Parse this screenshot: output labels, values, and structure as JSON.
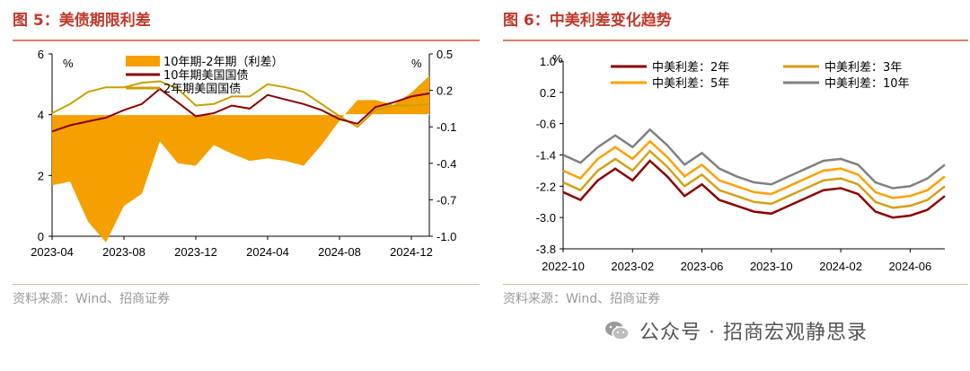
{
  "fig5": {
    "title": "图 5：美债期限利差",
    "source": "资料来源：Wind、招商证券",
    "chart_data": {
      "type": "line",
      "left_unit": "%",
      "right_unit": "%",
      "ylim_left": [
        0,
        6
      ],
      "yticks_left": [
        "0",
        "2",
        "4",
        "6"
      ],
      "ylim_right": [
        -1.0,
        0.5
      ],
      "yticks_right": [
        "-1.0",
        "-0.7",
        "-0.4",
        "-0.1",
        "0.2",
        "0.5"
      ],
      "xticks": [
        "2023-04",
        "2023-08",
        "2023-12",
        "2024-04",
        "2024-08",
        "2024-12"
      ],
      "legend": [
        "10年期-2年期（利差）",
        "10年期美国国债",
        "2年期美国国债"
      ],
      "series": [
        {
          "name": "10年期-2年期（利差）",
          "axis": "right",
          "color": "#f5a000",
          "points": [
            [
              "2023-04",
              -0.58
            ],
            [
              "2023-05",
              -0.55
            ],
            [
              "2023-06",
              -0.88
            ],
            [
              "2023-07",
              -1.05
            ],
            [
              "2023-08",
              -0.75
            ],
            [
              "2023-09",
              -0.65
            ],
            [
              "2023-10",
              -0.22
            ],
            [
              "2023-11",
              -0.4
            ],
            [
              "2023-12",
              -0.42
            ],
            [
              "2024-01",
              -0.25
            ],
            [
              "2024-02",
              -0.32
            ],
            [
              "2024-03",
              -0.38
            ],
            [
              "2024-04",
              -0.36
            ],
            [
              "2024-05",
              -0.38
            ],
            [
              "2024-06",
              -0.42
            ],
            [
              "2024-07",
              -0.25
            ],
            [
              "2024-08",
              -0.05
            ],
            [
              "2024-09",
              0.12
            ],
            [
              "2024-10",
              0.12
            ],
            [
              "2024-11",
              0.08
            ],
            [
              "2024-12",
              0.18
            ],
            [
              "2025-01",
              0.32
            ]
          ]
        },
        {
          "name": "10年期美国国债",
          "axis": "left",
          "color": "#8b0000",
          "points": [
            [
              "2023-04",
              3.45
            ],
            [
              "2023-05",
              3.65
            ],
            [
              "2023-06",
              3.78
            ],
            [
              "2023-07",
              3.9
            ],
            [
              "2023-08",
              4.15
            ],
            [
              "2023-09",
              4.35
            ],
            [
              "2023-10",
              4.85
            ],
            [
              "2023-11",
              4.4
            ],
            [
              "2023-12",
              3.95
            ],
            [
              "2024-01",
              4.05
            ],
            [
              "2024-02",
              4.3
            ],
            [
              "2024-03",
              4.2
            ],
            [
              "2024-04",
              4.65
            ],
            [
              "2024-05",
              4.5
            ],
            [
              "2024-06",
              4.35
            ],
            [
              "2024-07",
              4.15
            ],
            [
              "2024-08",
              3.85
            ],
            [
              "2024-09",
              3.7
            ],
            [
              "2024-10",
              4.25
            ],
            [
              "2024-11",
              4.4
            ],
            [
              "2024-12",
              4.6
            ],
            [
              "2025-01",
              4.7
            ]
          ]
        },
        {
          "name": "2年期美国国债",
          "axis": "left",
          "color": "#c8a000",
          "points": [
            [
              "2023-04",
              4.05
            ],
            [
              "2023-05",
              4.35
            ],
            [
              "2023-06",
              4.75
            ],
            [
              "2023-07",
              4.9
            ],
            [
              "2023-08",
              4.9
            ],
            [
              "2023-09",
              5.05
            ],
            [
              "2023-10",
              5.1
            ],
            [
              "2023-11",
              4.85
            ],
            [
              "2023-12",
              4.3
            ],
            [
              "2024-01",
              4.35
            ],
            [
              "2024-02",
              4.6
            ],
            [
              "2024-03",
              4.6
            ],
            [
              "2024-04",
              5.0
            ],
            [
              "2024-05",
              4.9
            ],
            [
              "2024-06",
              4.75
            ],
            [
              "2024-07",
              4.35
            ],
            [
              "2024-08",
              3.95
            ],
            [
              "2024-09",
              3.6
            ],
            [
              "2024-10",
              4.15
            ],
            [
              "2024-11",
              4.3
            ],
            [
              "2024-12",
              4.3
            ],
            [
              "2025-01",
              4.35
            ]
          ]
        }
      ]
    }
  },
  "fig6": {
    "title": "图 6：中美利差变化趋势",
    "source": "资料来源：Wind、招商证券",
    "chart_data": {
      "type": "line",
      "unit": "%",
      "ylim": [
        -3.8,
        1.0
      ],
      "yticks": [
        "1.0",
        "0.2",
        "-0.6",
        "-1.4",
        "-2.2",
        "-3.0",
        "-3.8"
      ],
      "xticks": [
        "2022-10",
        "2023-02",
        "2023-06",
        "2023-10",
        "2024-02",
        "2024-06"
      ],
      "legend": [
        "中美利差：2年",
        "中美利差：3年",
        "中美利差：5年",
        "中美利差：10年"
      ],
      "series": [
        {
          "name": "中美利差：2年",
          "color": "#8b0000",
          "points": [
            [
              "2022-10",
              -2.35
            ],
            [
              "2022-11",
              -2.55
            ],
            [
              "2022-12",
              -2.05
            ],
            [
              "2023-01",
              -1.75
            ],
            [
              "2023-02",
              -2.05
            ],
            [
              "2023-03",
              -1.55
            ],
            [
              "2023-04",
              -1.95
            ],
            [
              "2023-05",
              -2.45
            ],
            [
              "2023-06",
              -2.15
            ],
            [
              "2023-07",
              -2.55
            ],
            [
              "2023-08",
              -2.7
            ],
            [
              "2023-09",
              -2.85
            ],
            [
              "2023-10",
              -2.9
            ],
            [
              "2023-11",
              -2.7
            ],
            [
              "2023-12",
              -2.5
            ],
            [
              "2024-01",
              -2.3
            ],
            [
              "2024-02",
              -2.25
            ],
            [
              "2024-03",
              -2.4
            ],
            [
              "2024-04",
              -2.85
            ],
            [
              "2024-05",
              -3.0
            ],
            [
              "2024-06",
              -2.95
            ],
            [
              "2024-07",
              -2.8
            ],
            [
              "2024-08",
              -2.45
            ]
          ]
        },
        {
          "name": "中美利差：3年",
          "color": "#d4a017",
          "points": [
            [
              "2022-10",
              -2.1
            ],
            [
              "2022-11",
              -2.3
            ],
            [
              "2022-12",
              -1.8
            ],
            [
              "2023-01",
              -1.5
            ],
            [
              "2023-02",
              -1.8
            ],
            [
              "2023-03",
              -1.3
            ],
            [
              "2023-04",
              -1.7
            ],
            [
              "2023-05",
              -2.2
            ],
            [
              "2023-06",
              -1.9
            ],
            [
              "2023-07",
              -2.3
            ],
            [
              "2023-08",
              -2.45
            ],
            [
              "2023-09",
              -2.6
            ],
            [
              "2023-10",
              -2.65
            ],
            [
              "2023-11",
              -2.45
            ],
            [
              "2023-12",
              -2.25
            ],
            [
              "2024-01",
              -2.05
            ],
            [
              "2024-02",
              -2.0
            ],
            [
              "2024-03",
              -2.15
            ],
            [
              "2024-04",
              -2.6
            ],
            [
              "2024-05",
              -2.75
            ],
            [
              "2024-06",
              -2.7
            ],
            [
              "2024-07",
              -2.55
            ],
            [
              "2024-08",
              -2.2
            ]
          ]
        },
        {
          "name": "中美利差：5年",
          "color": "#ffa000",
          "points": [
            [
              "2022-10",
              -1.8
            ],
            [
              "2022-11",
              -2.0
            ],
            [
              "2022-12",
              -1.5
            ],
            [
              "2023-01",
              -1.2
            ],
            [
              "2023-02",
              -1.5
            ],
            [
              "2023-03",
              -1.05
            ],
            [
              "2023-04",
              -1.45
            ],
            [
              "2023-05",
              -1.95
            ],
            [
              "2023-06",
              -1.65
            ],
            [
              "2023-07",
              -2.05
            ],
            [
              "2023-08",
              -2.2
            ],
            [
              "2023-09",
              -2.35
            ],
            [
              "2023-10",
              -2.4
            ],
            [
              "2023-11",
              -2.2
            ],
            [
              "2023-12",
              -2.0
            ],
            [
              "2024-01",
              -1.8
            ],
            [
              "2024-02",
              -1.75
            ],
            [
              "2024-03",
              -1.9
            ],
            [
              "2024-04",
              -2.35
            ],
            [
              "2024-05",
              -2.5
            ],
            [
              "2024-06",
              -2.45
            ],
            [
              "2024-07",
              -2.3
            ],
            [
              "2024-08",
              -1.95
            ]
          ]
        },
        {
          "name": "中美利差：10年",
          "color": "#808080",
          "points": [
            [
              "2022-10",
              -1.4
            ],
            [
              "2022-11",
              -1.6
            ],
            [
              "2022-12",
              -1.2
            ],
            [
              "2023-01",
              -0.9
            ],
            [
              "2023-02",
              -1.2
            ],
            [
              "2023-03",
              -0.75
            ],
            [
              "2023-04",
              -1.15
            ],
            [
              "2023-05",
              -1.65
            ],
            [
              "2023-06",
              -1.35
            ],
            [
              "2023-07",
              -1.75
            ],
            [
              "2023-08",
              -1.95
            ],
            [
              "2023-09",
              -2.1
            ],
            [
              "2023-10",
              -2.15
            ],
            [
              "2023-11",
              -1.95
            ],
            [
              "2023-12",
              -1.75
            ],
            [
              "2024-01",
              -1.55
            ],
            [
              "2024-02",
              -1.5
            ],
            [
              "2024-03",
              -1.65
            ],
            [
              "2024-04",
              -2.1
            ],
            [
              "2024-05",
              -2.25
            ],
            [
              "2024-06",
              -2.2
            ],
            [
              "2024-07",
              -2.0
            ],
            [
              "2024-08",
              -1.65
            ]
          ]
        }
      ]
    }
  },
  "footer": {
    "icon": "wechat-icon",
    "text": "公众号 · 招商宏观静思录"
  }
}
